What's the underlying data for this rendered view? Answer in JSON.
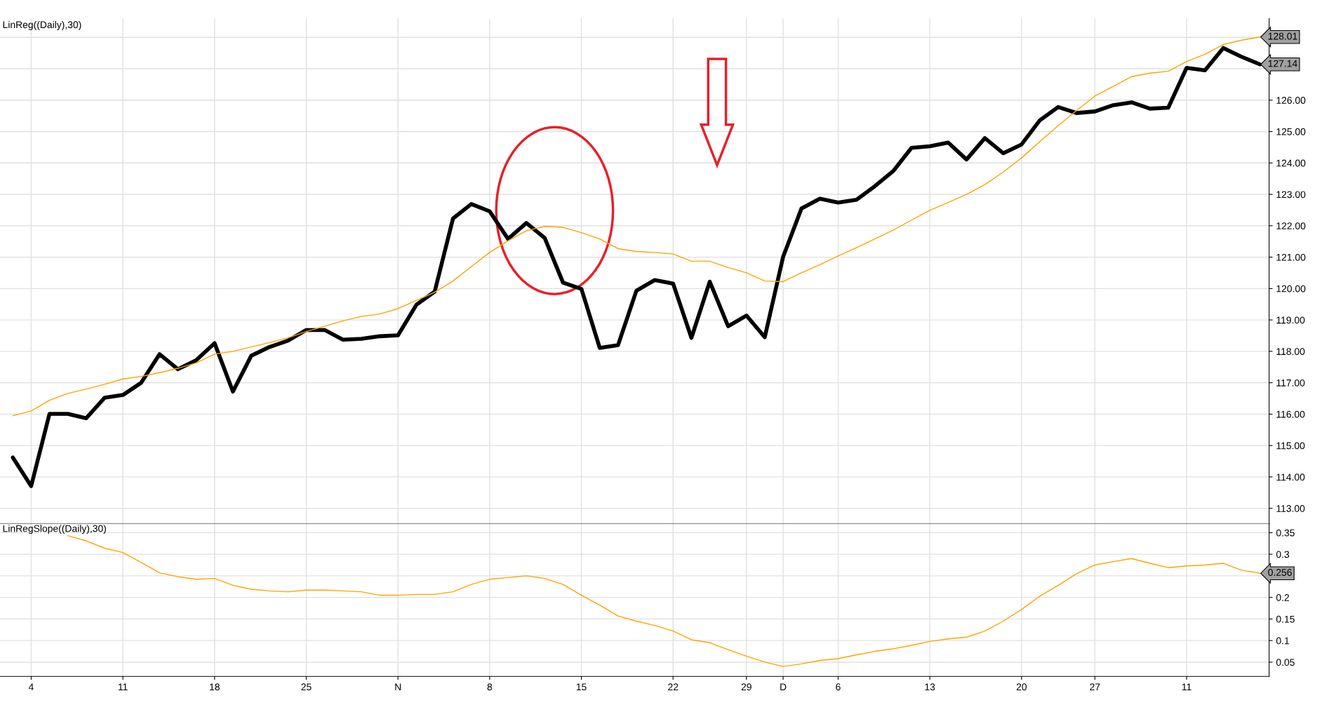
{
  "chart_data": [
    {
      "type": "line",
      "title": "LinReg((Daily),30)",
      "tick_labels": "y",
      "grid": true,
      "legend": false,
      "categories": [
        null,
        null,
        null,
        null,
        null,
        null,
        null,
        null,
        null,
        null,
        null,
        null,
        null,
        null,
        null,
        null,
        null,
        null,
        null,
        null,
        null,
        null,
        null,
        null,
        null,
        null,
        null,
        null,
        null,
        null,
        null,
        null,
        null,
        null,
        null,
        null,
        null,
        null,
        null,
        null,
        null,
        null,
        null,
        null,
        null,
        null,
        null,
        null,
        null,
        null,
        null,
        null,
        null,
        null,
        null,
        null,
        null,
        null,
        null,
        null,
        null,
        null,
        null,
        null,
        null,
        null,
        null,
        null,
        null
      ],
      "ylim": [
        112.5,
        128.6
      ],
      "yticks": [
        {
          "value": 113,
          "label": "113.00"
        },
        {
          "value": 114,
          "label": "114.00"
        },
        {
          "value": 115,
          "label": "115.00"
        },
        {
          "value": 116,
          "label": "116.00"
        },
        {
          "value": 117,
          "label": "117.00"
        },
        {
          "value": 118,
          "label": "118.00"
        },
        {
          "value": 119,
          "label": "119.00"
        },
        {
          "value": 120,
          "label": "120.00"
        },
        {
          "value": 121,
          "label": "121.00"
        },
        {
          "value": 122,
          "label": "122.00"
        },
        {
          "value": 123,
          "label": "123.00"
        },
        {
          "value": 124,
          "label": "124.00"
        },
        {
          "value": 125,
          "label": "125.00"
        },
        {
          "value": 126,
          "label": "126.00"
        },
        {
          "value": 127,
          "label": null
        },
        {
          "value": 128,
          "label": null
        }
      ],
      "series": [
        {
          "color": "#000000",
          "values": [
            114.62,
            113.71,
            116.01,
            116.01,
            115.87,
            116.52,
            116.61,
            117.0,
            117.91,
            117.43,
            117.72,
            118.26,
            116.72,
            117.86,
            118.14,
            118.34,
            118.68,
            118.68,
            118.37,
            118.4,
            118.48,
            118.51,
            119.48,
            119.9,
            122.23,
            122.69,
            122.46,
            121.58,
            122.09,
            121.61,
            120.19,
            119.99,
            118.11,
            118.2,
            119.93,
            120.27,
            120.16,
            118.43,
            120.22,
            118.8,
            119.14,
            118.45,
            121.01,
            122.55,
            122.86,
            122.74,
            122.83,
            123.26,
            123.74,
            124.48,
            124.53,
            124.65,
            124.11,
            124.79,
            124.31,
            124.59,
            125.36,
            125.78,
            125.59,
            125.64,
            125.84,
            125.93,
            125.73,
            125.76,
            127.03,
            126.95,
            127.66,
            127.38,
            127.14
          ],
          "value_labels": [
            null,
            null,
            null,
            null,
            null,
            null,
            null,
            null,
            null,
            null,
            null,
            null,
            null,
            null,
            null,
            null,
            null,
            null,
            null,
            null,
            null,
            null,
            null,
            null,
            null,
            null,
            null,
            null,
            null,
            null,
            null,
            null,
            null,
            null,
            null,
            null,
            null,
            null,
            null,
            null,
            null,
            null,
            null,
            null,
            null,
            null,
            null,
            null,
            null,
            null,
            null,
            null,
            null,
            null,
            null,
            null,
            null,
            null,
            null,
            null,
            null,
            null,
            null,
            null,
            null,
            null,
            null,
            null,
            "127.14"
          ]
        },
        {
          "color": "#ffa200",
          "values": [
            115.95,
            116.1,
            116.44,
            116.66,
            116.8,
            116.95,
            117.12,
            117.2,
            117.32,
            117.46,
            117.63,
            117.91,
            118.0,
            118.14,
            118.28,
            118.43,
            118.63,
            118.8,
            118.97,
            119.11,
            119.19,
            119.36,
            119.62,
            119.88,
            120.24,
            120.7,
            121.15,
            121.52,
            121.84,
            121.98,
            121.95,
            121.78,
            121.58,
            121.27,
            121.18,
            121.15,
            121.1,
            120.87,
            120.87,
            120.67,
            120.5,
            120.24,
            120.22,
            120.5,
            120.76,
            121.04,
            121.3,
            121.58,
            121.86,
            122.18,
            122.49,
            122.74,
            123.0,
            123.31,
            123.71,
            124.16,
            124.68,
            125.19,
            125.67,
            126.13,
            126.44,
            126.75,
            126.86,
            126.92,
            127.23,
            127.46,
            127.77,
            127.91,
            128.01
          ],
          "value_labels": [
            null,
            null,
            null,
            null,
            null,
            null,
            null,
            null,
            null,
            null,
            null,
            null,
            null,
            null,
            null,
            null,
            null,
            null,
            null,
            null,
            null,
            null,
            null,
            null,
            null,
            null,
            null,
            null,
            null,
            null,
            null,
            null,
            null,
            null,
            null,
            null,
            null,
            null,
            null,
            null,
            null,
            null,
            null,
            null,
            null,
            null,
            null,
            null,
            null,
            null,
            null,
            null,
            null,
            null,
            null,
            null,
            null,
            null,
            null,
            null,
            null,
            null,
            null,
            null,
            null,
            null,
            null,
            null,
            "128.01"
          ]
        }
      ]
    },
    {
      "type": "line",
      "title": "LinRegSlope((Daily),30)",
      "grid": true,
      "legend": false,
      "categories": [
        null,
        "4",
        null,
        null,
        null,
        null,
        "11",
        null,
        null,
        null,
        null,
        "18",
        null,
        null,
        null,
        null,
        "25",
        null,
        null,
        null,
        null,
        "N",
        null,
        null,
        null,
        null,
        "8",
        null,
        null,
        null,
        null,
        "15",
        null,
        null,
        null,
        null,
        "22",
        null,
        null,
        null,
        "29",
        null,
        "D",
        null,
        null,
        "6",
        null,
        null,
        null,
        null,
        "13",
        null,
        null,
        null,
        null,
        "20",
        null,
        null,
        null,
        "27",
        null,
        null,
        null,
        null,
        "11",
        null,
        null,
        null,
        null
      ],
      "ylim": [
        0.017,
        0.37
      ],
      "yticks": [
        0.05,
        0.1,
        0.15,
        0.2,
        {
          "value": 0.25,
          "label": null
        },
        0.3,
        0.35
      ],
      "series": [
        {
          "color": "#ffa200",
          "values": [
            null,
            null,
            null,
            0.343,
            0.331,
            0.314,
            0.304,
            0.281,
            0.257,
            0.248,
            0.242,
            0.244,
            0.228,
            0.219,
            0.215,
            0.213,
            0.217,
            0.217,
            0.215,
            0.213,
            0.205,
            0.205,
            0.207,
            0.207,
            0.213,
            0.23,
            0.242,
            0.246,
            0.25,
            0.244,
            0.23,
            0.205,
            0.182,
            0.157,
            0.145,
            0.135,
            0.122,
            0.102,
            0.095,
            0.079,
            0.064,
            0.05,
            0.04,
            0.046,
            0.054,
            0.058,
            0.067,
            0.075,
            0.081,
            0.089,
            0.098,
            0.104,
            0.108,
            0.122,
            0.145,
            0.172,
            0.203,
            0.228,
            0.255,
            0.275,
            0.283,
            0.29,
            0.279,
            0.269,
            0.273,
            0.275,
            0.279,
            0.263,
            0.256
          ],
          "value_labels": [
            null,
            null,
            null,
            null,
            null,
            null,
            null,
            null,
            null,
            null,
            null,
            null,
            null,
            null,
            null,
            null,
            null,
            null,
            null,
            null,
            null,
            null,
            null,
            null,
            null,
            null,
            null,
            null,
            null,
            null,
            null,
            null,
            null,
            null,
            null,
            null,
            null,
            null,
            null,
            null,
            null,
            null,
            null,
            null,
            null,
            null,
            null,
            null,
            null,
            null,
            null,
            null,
            null,
            null,
            null,
            null,
            null,
            null,
            null,
            null,
            null,
            null,
            null,
            null,
            null,
            null,
            null,
            null,
            "0.256"
          ]
        }
      ]
    }
  ]
}
